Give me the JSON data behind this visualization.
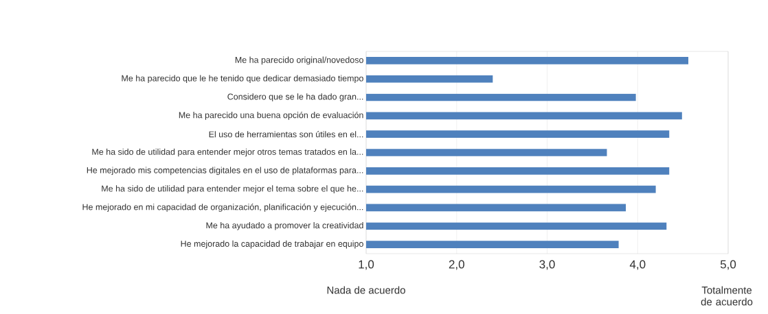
{
  "chart_data": {
    "type": "bar",
    "orientation": "horizontal",
    "categories": [
      "Me ha parecido original/novedoso",
      "Me ha parecido que le he tenido que dedicar demasiado tiempo",
      "Considero que se le ha dado gran...",
      "Me ha parecido una buena opción de evaluación",
      "El uso de herramientas son útiles en el...",
      "Me ha sido de utilidad para entender mejor otros temas tratados en la...",
      "He mejorado mis competencias digitales en el uso de plataformas para...",
      "Me ha sido de utilidad para entender mejor el tema sobre el que he...",
      "He mejorado en mi capacidad de organización, planificación y ejecución...",
      "Me ha ayudado a promover la creatividad",
      "He mejorado la capacidad de trabajar en equipo"
    ],
    "values": [
      4.56,
      2.4,
      3.98,
      4.49,
      4.35,
      3.66,
      4.35,
      4.2,
      3.87,
      4.32,
      3.79
    ],
    "color": "#4f81bd",
    "xlim": [
      1,
      5
    ],
    "xticks": [
      {
        "value": 1,
        "label": "1,0"
      },
      {
        "value": 2,
        "label": "2,0"
      },
      {
        "value": 3,
        "label": "3,0"
      },
      {
        "value": 4,
        "label": "4,0"
      },
      {
        "value": 5,
        "label": "5,0"
      }
    ],
    "grid": "x",
    "annotations": [
      "Nada de acuerdo",
      "Totalmente de acuerdo"
    ]
  }
}
